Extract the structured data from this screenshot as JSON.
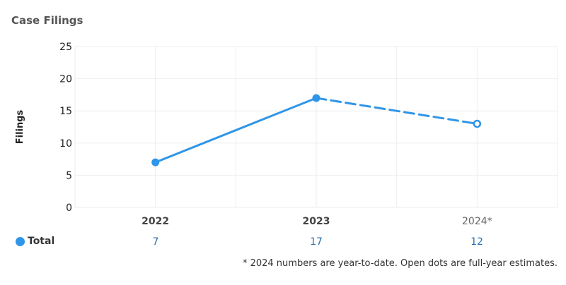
{
  "title": "Case Filings",
  "chart_data": {
    "type": "line",
    "title": "Case Filings",
    "xlabel": "",
    "ylabel": "Filings",
    "categories": [
      "2022",
      "2023",
      "2024*"
    ],
    "ylim": [
      0,
      25
    ],
    "yticks": [
      0,
      5,
      10,
      15,
      20,
      25
    ],
    "grid": true,
    "series": [
      {
        "name": "Total",
        "values": [
          7,
          17,
          13
        ],
        "point_style": [
          "filled",
          "filled",
          "open"
        ],
        "segment_style": [
          "solid",
          "dashed"
        ],
        "color": "#2f95e8"
      }
    ],
    "table_row": {
      "label": "Total",
      "values": [
        "7",
        "17",
        "12"
      ]
    },
    "footnote": "* 2024 numbers are year-to-date. Open dots are full-year estimates."
  },
  "colors": {
    "series": "#2f95e8",
    "grid": "#eeeeee",
    "table_value": "#2a6fb0"
  }
}
